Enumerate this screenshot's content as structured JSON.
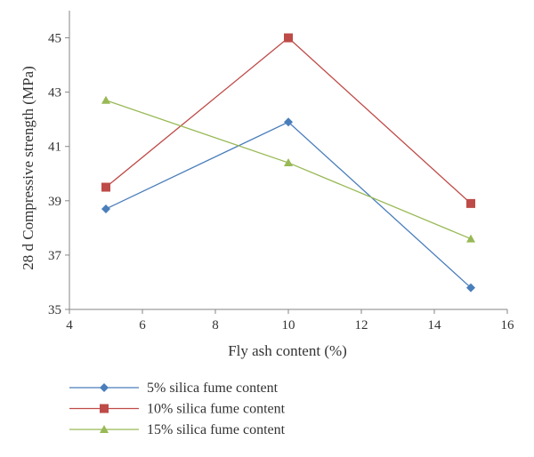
{
  "chart_data": {
    "type": "line",
    "title": "",
    "xlabel": "Fly ash content (%)",
    "ylabel": "28 d Compressive strength (MPa)",
    "xlim": [
      4,
      16
    ],
    "ylim": [
      35,
      46
    ],
    "xticks": [
      4,
      6,
      8,
      10,
      12,
      14,
      16
    ],
    "yticks": [
      35,
      37,
      39,
      41,
      43,
      45
    ],
    "grid": false,
    "legend_position": "bottom",
    "x": [
      5,
      10,
      15
    ],
    "series": [
      {
        "name": "5% silica fume content",
        "values": [
          38.7,
          41.9,
          35.8
        ],
        "color": "#4a7ebb",
        "marker": "diamond"
      },
      {
        "name": "10% silica fume content",
        "values": [
          39.5,
          45.0,
          38.9
        ],
        "color": "#be4b48",
        "marker": "square"
      },
      {
        "name": "15% silica fume content",
        "values": [
          42.7,
          40.4,
          37.6
        ],
        "color": "#98b954",
        "marker": "triangle"
      }
    ]
  }
}
